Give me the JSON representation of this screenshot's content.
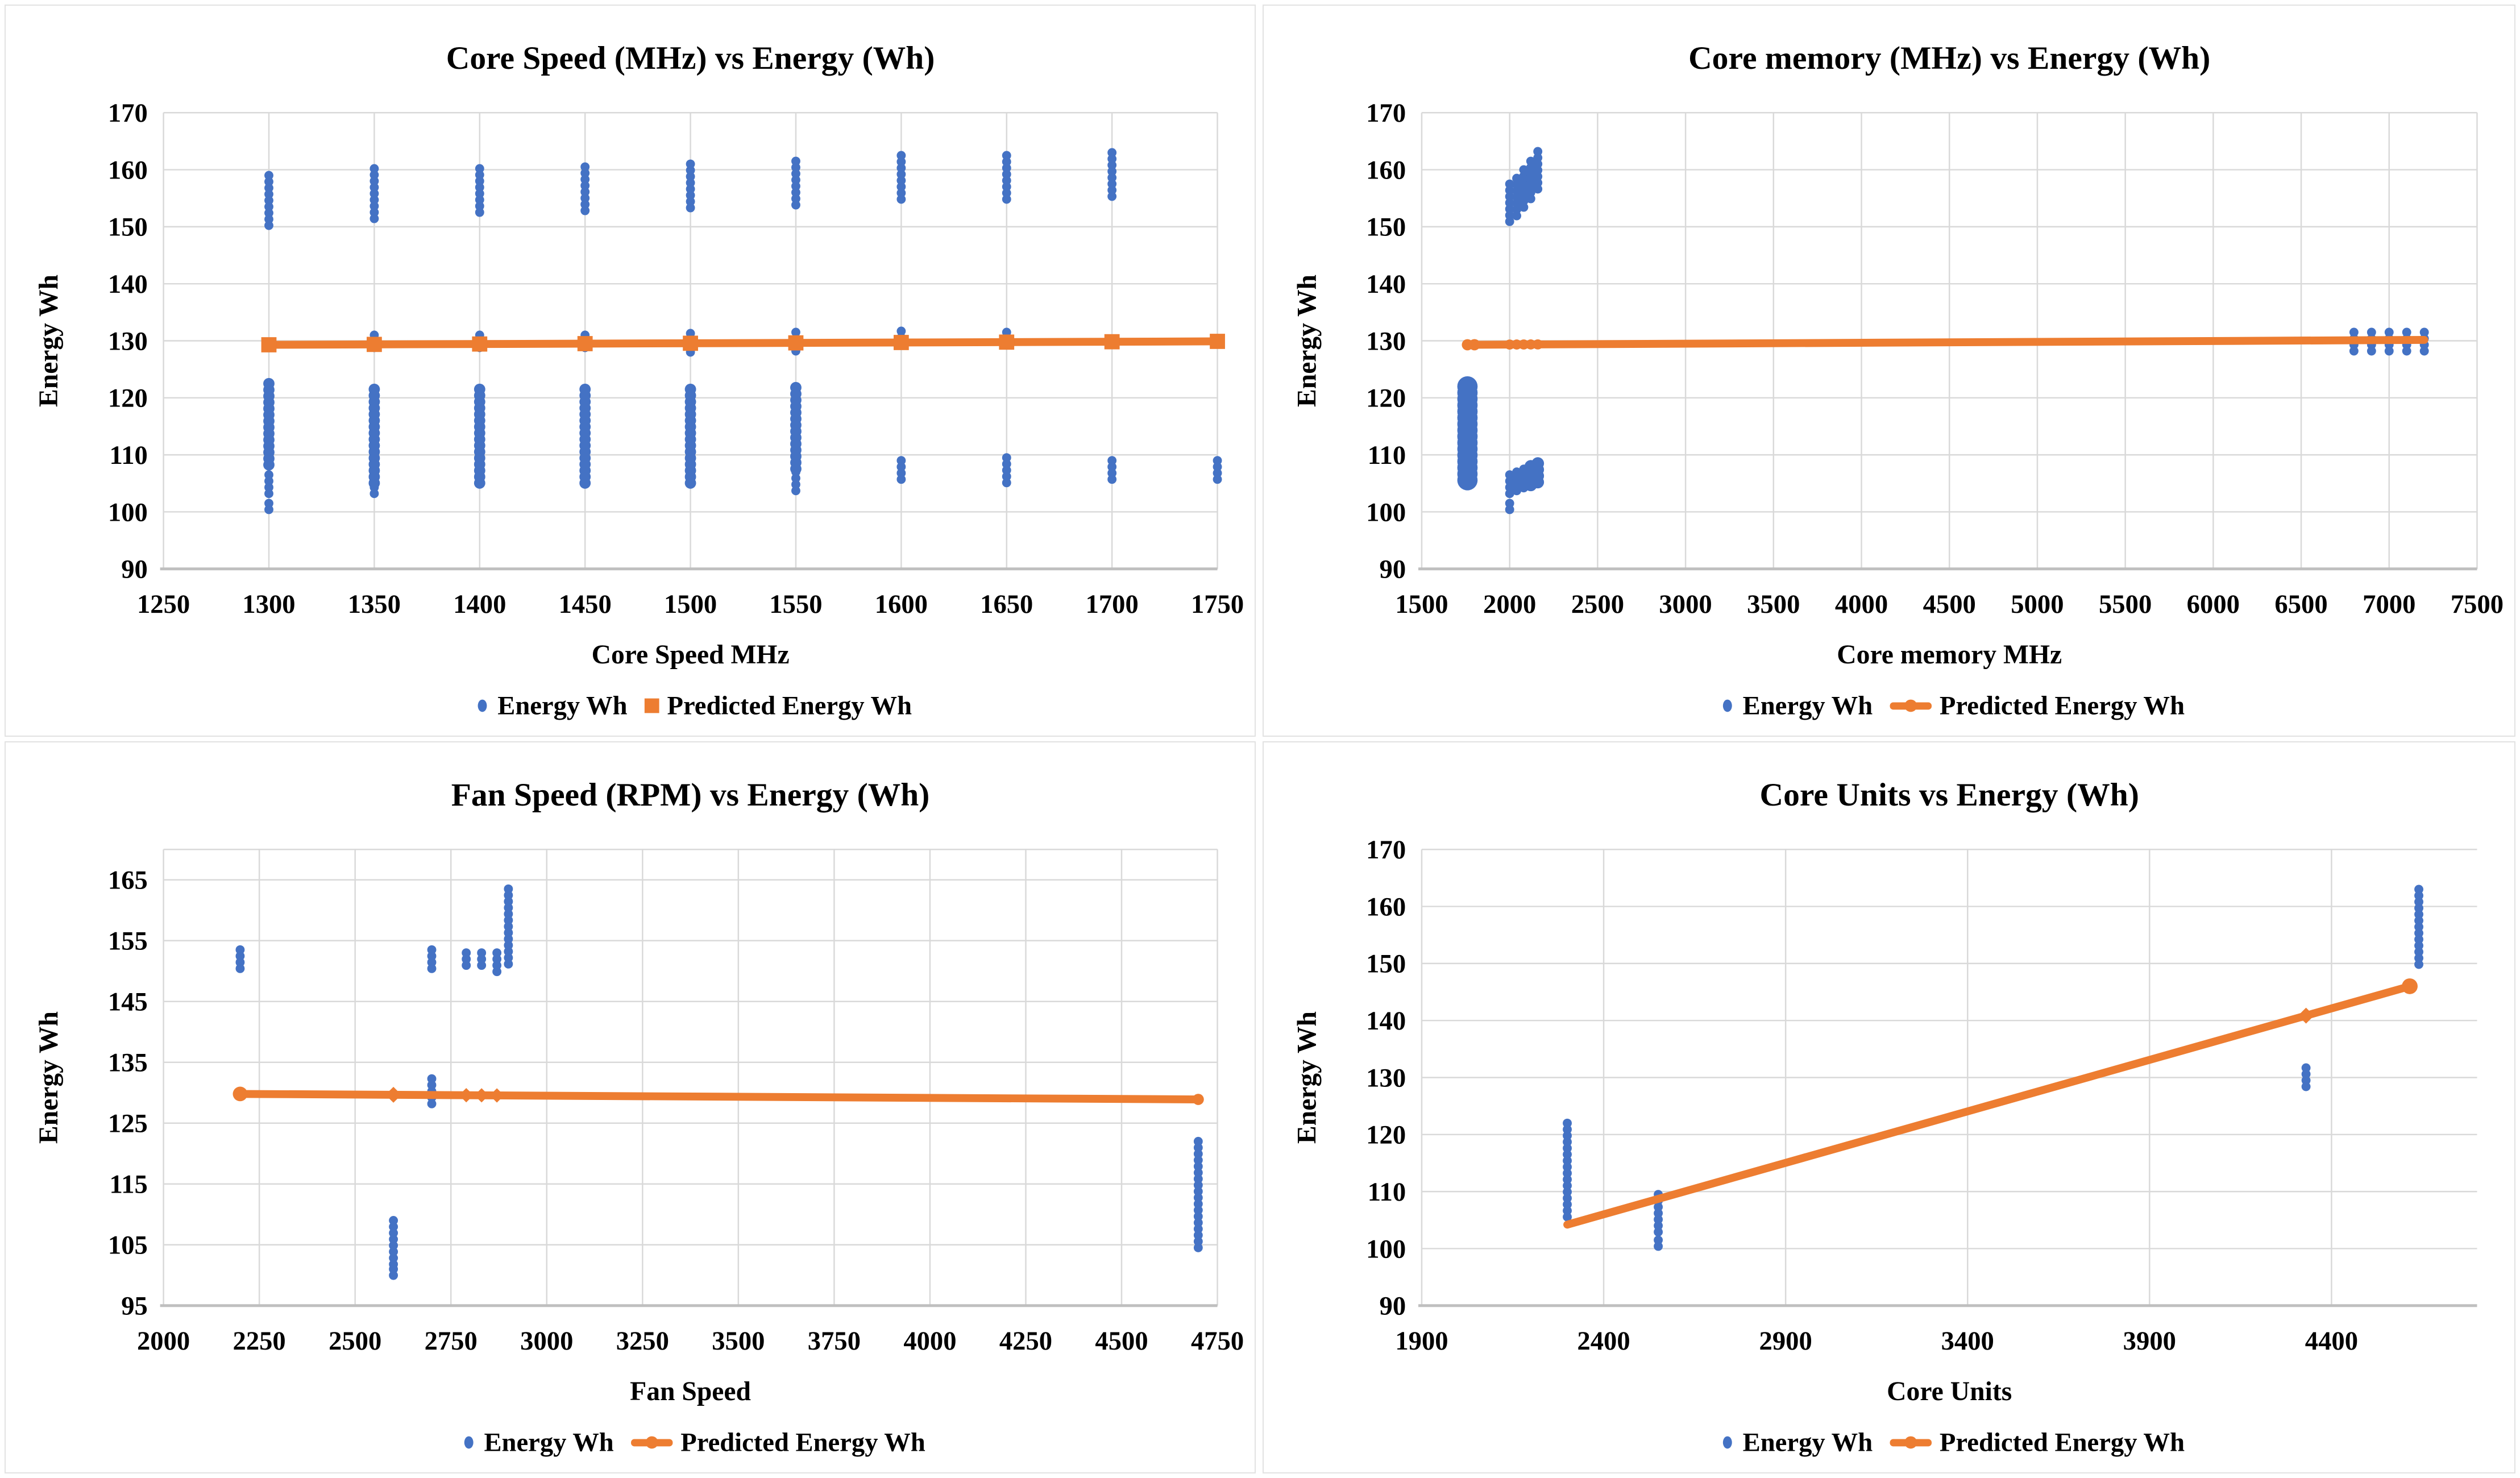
{
  "figure": {
    "background": "#FFFFFF",
    "panel_border_color": "#E2E2E2"
  },
  "colors": {
    "scatter_blue": "#4472C4",
    "predicted_orange": "#ED7D31",
    "gridline": "#D9D9D9",
    "axis_line": "#BFBFBF",
    "text": "#000000"
  },
  "legend": {
    "energy_label": "Energy Wh",
    "predicted_label": "Predicted Energy Wh"
  },
  "chart_data": [
    {
      "id": "core-speed",
      "type": "scatter",
      "title": "Core Speed (MHz) vs Energy (Wh)",
      "xlabel": "Core Speed MHz",
      "ylabel": "Energy Wh",
      "xlim": [
        1250,
        1750
      ],
      "ylim": [
        90,
        170
      ],
      "xtick_labels": [
        "1250",
        "1300",
        "1350",
        "1400",
        "1450",
        "1500",
        "1550",
        "1600",
        "1650",
        "1700",
        "1750"
      ],
      "ytick_labels": [
        "90",
        "100",
        "110",
        "120",
        "130",
        "140",
        "150",
        "160",
        "170"
      ],
      "x_grid_step": 50,
      "top_gridline": false,
      "legend_predicted_marker": "square",
      "clusters": [
        [
          1300,
          150,
          159
        ],
        [
          1300,
          108,
          122.5,
          20
        ],
        [
          1300,
          103,
          106.5
        ],
        [
          1300,
          100,
          101.5
        ],
        [
          1350,
          151,
          160.2
        ],
        [
          1350,
          128,
          131
        ],
        [
          1350,
          104.5,
          121.5,
          20
        ],
        [
          1350,
          103,
          106.5
        ],
        [
          1400,
          151.5,
          160.2
        ],
        [
          1400,
          128,
          131
        ],
        [
          1400,
          105,
          121.5,
          20
        ],
        [
          1400,
          104.5,
          107.5
        ],
        [
          1450,
          152,
          160.5
        ],
        [
          1450,
          128,
          131
        ],
        [
          1450,
          104,
          121.5,
          20
        ],
        [
          1500,
          152.5,
          161
        ],
        [
          1500,
          128,
          131.3
        ],
        [
          1500,
          105,
          121.5,
          20
        ],
        [
          1550,
          153,
          161.5
        ],
        [
          1550,
          128,
          131.5
        ],
        [
          1550,
          107,
          121.8,
          20
        ],
        [
          1550,
          103.5,
          107
        ],
        [
          1600,
          154,
          162.5
        ],
        [
          1600,
          128.5,
          131.7
        ],
        [
          1600,
          105.5,
          109
        ],
        [
          1650,
          154,
          162.5
        ],
        [
          1650,
          128.5,
          131.5
        ],
        [
          1650,
          105,
          109.5
        ],
        [
          1700,
          155,
          163
        ],
        [
          1700,
          105.5,
          109
        ],
        [
          1750,
          105.5,
          109
        ]
      ],
      "line": {
        "points": [
          [
            1300,
            129.3
          ],
          [
            1750,
            129.9
          ]
        ],
        "markers": [
          {
            "x": 1300,
            "shape": "square",
            "size": 27
          },
          {
            "x": 1350,
            "shape": "square",
            "size": 27
          },
          {
            "x": 1400,
            "shape": "square",
            "size": 27
          },
          {
            "x": 1450,
            "shape": "square",
            "size": 27
          },
          {
            "x": 1500,
            "shape": "square",
            "size": 27
          },
          {
            "x": 1550,
            "shape": "square",
            "size": 27
          },
          {
            "x": 1600,
            "shape": "square",
            "size": 27
          },
          {
            "x": 1650,
            "shape": "square",
            "size": 27
          },
          {
            "x": 1700,
            "shape": "square",
            "size": 27
          },
          {
            "x": 1750,
            "shape": "square",
            "size": 27
          }
        ]
      }
    },
    {
      "id": "core-memory",
      "type": "scatter",
      "title": "Core memory (MHz) vs Energy (Wh)",
      "xlabel": "Core memory MHz",
      "ylabel": "Energy Wh",
      "xlim": [
        1500,
        7500
      ],
      "ylim": [
        90,
        170
      ],
      "xtick_labels": [
        "1500",
        "2000",
        "2500",
        "3000",
        "3500",
        "4000",
        "4500",
        "5000",
        "5500",
        "6000",
        "6500",
        "7000",
        "7500"
      ],
      "ytick_labels": [
        "90",
        "100",
        "110",
        "120",
        "130",
        "140",
        "150",
        "160",
        "170"
      ],
      "x_grid_step": 500,
      "top_gridline": false,
      "legend_predicted_marker": "line",
      "clusters": [
        [
          1760,
          104.5,
          122,
          36
        ],
        [
          2000,
          150,
          157.5
        ],
        [
          2000,
          102.5,
          106.5
        ],
        [
          2000,
          100,
          101.5
        ],
        [
          2040,
          151.5,
          158.5
        ],
        [
          2040,
          103.5,
          107
        ],
        [
          2080,
          153,
          160
        ],
        [
          2080,
          104,
          107.5
        ],
        [
          2120,
          154.5,
          161.5
        ],
        [
          2120,
          104.5,
          108,
          22
        ],
        [
          2160,
          156,
          163.2
        ],
        [
          2160,
          104.5,
          108.5,
          22
        ],
        [
          6800,
          127.7,
          131.5
        ],
        [
          6900,
          127.7,
          131.5
        ],
        [
          7000,
          127.7,
          131.5
        ],
        [
          7100,
          127.7,
          131.5
        ],
        [
          7200,
          127.7,
          131.5
        ]
      ],
      "line": {
        "points": [
          [
            1760,
            129.3
          ],
          [
            7200,
            130.15
          ]
        ],
        "markers": [
          {
            "x": 1760,
            "shape": "circle",
            "size": 10
          },
          {
            "x": 1800,
            "shape": "circle",
            "size": 10
          },
          {
            "x": 2000,
            "shape": "circle",
            "size": 9
          },
          {
            "x": 2040,
            "shape": "circle",
            "size": 9
          },
          {
            "x": 2080,
            "shape": "circle",
            "size": 9
          },
          {
            "x": 2120,
            "shape": "circle",
            "size": 9
          },
          {
            "x": 2160,
            "shape": "circle",
            "size": 9
          }
        ]
      }
    },
    {
      "id": "fan-speed",
      "type": "scatter",
      "title": "Fan Speed (RPM) vs Energy (Wh)",
      "xlabel": "Fan Speed",
      "ylabel": "Energy Wh",
      "xlim": [
        2000,
        4750
      ],
      "ylim": [
        95,
        170
      ],
      "xtick_labels": [
        "2000",
        "2250",
        "2500",
        "2750",
        "3000",
        "3250",
        "3500",
        "3750",
        "4000",
        "4250",
        "4500",
        "4750"
      ],
      "ytick_labels": [
        "95",
        "105",
        "115",
        "125",
        "135",
        "145",
        "155",
        "165"
      ],
      "x_grid_step": 250,
      "top_gridline": true,
      "legend_predicted_marker": "line",
      "clusters": [
        [
          2200,
          150,
          153.5
        ],
        [
          2600,
          101.5,
          109
        ],
        [
          2600,
          99.5,
          101
        ],
        [
          2700,
          127.3,
          132.3
        ],
        [
          2700,
          150,
          153.5
        ],
        [
          2790,
          150,
          153
        ],
        [
          2830,
          150,
          153
        ],
        [
          2870,
          149.5,
          153
        ],
        [
          2900,
          150.5,
          163.5
        ],
        [
          4700,
          104.5,
          122
        ]
      ],
      "line": {
        "points": [
          [
            2200,
            129.8
          ],
          [
            4700,
            128.9
          ]
        ],
        "markers": [
          {
            "x": 2200,
            "shape": "circle",
            "size": 13
          },
          {
            "x": 2600,
            "shape": "diamond",
            "size": 20
          },
          {
            "x": 2790,
            "shape": "diamond",
            "size": 18
          },
          {
            "x": 2830,
            "shape": "diamond",
            "size": 18
          },
          {
            "x": 2870,
            "shape": "diamond",
            "size": 18
          },
          {
            "x": 4700,
            "shape": "circle",
            "size": 10
          }
        ]
      }
    },
    {
      "id": "core-units",
      "type": "scatter",
      "title": "Core Units vs Energy (Wh)",
      "xlabel": "Core Units",
      "ylabel": "Energy Wh",
      "xlim": [
        1900,
        4800
      ],
      "ylim": [
        90,
        170
      ],
      "xtick_labels": [
        "1900",
        "2400",
        "2900",
        "3400",
        "3900",
        "4400"
      ],
      "ytick_labels": [
        "90",
        "100",
        "110",
        "120",
        "130",
        "140",
        "150",
        "160",
        "170"
      ],
      "x_grid_step": 500,
      "top_gridline": false,
      "legend_predicted_marker": "line",
      "clusters": [
        [
          2300,
          104.5,
          122
        ],
        [
          2550,
          102,
          109.5
        ],
        [
          2550,
          99.5,
          101.5
        ],
        [
          4330,
          127.7,
          131.7
        ],
        [
          4640,
          149,
          163
        ]
      ],
      "line": {
        "points": [
          [
            2300,
            104.2
          ],
          [
            4615,
            146
          ]
        ],
        "markers": [
          {
            "x": 4330,
            "shape": "diamond",
            "size": 20
          },
          {
            "x": 4615,
            "shape": "circle",
            "size": 14
          }
        ]
      }
    }
  ]
}
